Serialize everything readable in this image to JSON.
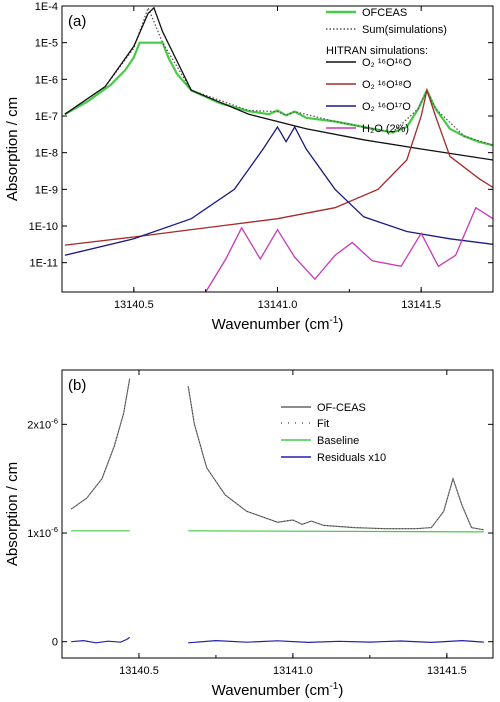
{
  "chart_data": [
    {
      "type": "line",
      "panel_label": "(a)",
      "xlabel": "Wavenumber (cm",
      "xlabel_sup": "-1",
      "xlabel_end": ")",
      "ylabel": "Absorption / cm",
      "y_scale": "log",
      "xlim": [
        13140.25,
        13141.75
      ],
      "ylim_log10": [
        -11.8,
        -4
      ],
      "x_ticks": [
        13140.5,
        13141.0,
        13141.5
      ],
      "x_tick_labels": [
        "13140.5",
        "13141.0",
        "13141.5"
      ],
      "y_ticks_log10": [
        -4,
        -5,
        -6,
        -7,
        -8,
        -9,
        -10,
        -11
      ],
      "y_tick_labels": [
        "1E-4",
        "1E-5",
        "1E-6",
        "1E-7",
        "1E-8",
        "1E-9",
        "1E-10",
        "1E-11"
      ],
      "legend_position": "top-right",
      "legend_header": "HITRAN simulations:",
      "legend": [
        {
          "label": "OFCEAS",
          "color": "#44cc44"
        },
        {
          "label": "Sum(simulations)",
          "color": "#555555",
          "dotted": true
        },
        {
          "label": "O₂ ¹⁶O¹⁶O",
          "color": "#111111"
        },
        {
          "label": "O₂ ¹⁶O¹⁸O",
          "color": "#a52a2a"
        },
        {
          "label": "O₂ ¹⁶O¹⁷O",
          "color": "#1a1a80"
        },
        {
          "label": "H₂O (2%)",
          "color": "#c838b8"
        }
      ],
      "series": [
        {
          "name": "OFCEAS",
          "color": "#44cc44",
          "x": [
            13140.26,
            13140.34,
            13140.42,
            13140.47,
            13140.5,
            13140.52,
            13140.6,
            13140.62,
            13140.65,
            13140.7,
            13140.8,
            13140.9,
            13140.97,
            13141.0,
            13141.03,
            13141.06,
            13141.1,
            13141.2,
            13141.3,
            13141.4,
            13141.45,
            13141.49,
            13141.52,
            13141.55,
            13141.6,
            13141.65,
            13141.7,
            13141.75
          ],
          "y_log10": [
            -6.95,
            -6.6,
            -6.15,
            -5.75,
            -5.4,
            -5.0,
            -5.0,
            -5.4,
            -5.85,
            -6.3,
            -6.65,
            -6.87,
            -6.95,
            -6.85,
            -6.98,
            -6.88,
            -7.05,
            -7.15,
            -7.3,
            -7.45,
            -7.3,
            -6.8,
            -6.3,
            -6.8,
            -7.35,
            -7.55,
            -7.7,
            -7.8
          ]
        },
        {
          "name": "Sum(simulations)",
          "color": "#555555",
          "x": [
            13140.26,
            13140.4,
            13140.5,
            13140.55,
            13140.6,
            13140.7,
            13140.9,
            13141.0,
            13141.03,
            13141.06,
            13141.2,
            13141.4,
            13141.49,
            13141.52,
            13141.55,
            13141.65,
            13141.75
          ],
          "y_log10": [
            -6.95,
            -6.2,
            -5.15,
            -4.05,
            -5.0,
            -6.3,
            -6.85,
            -6.88,
            -6.98,
            -6.88,
            -7.15,
            -7.45,
            -6.8,
            -6.3,
            -6.8,
            -7.55,
            -7.8
          ]
        },
        {
          "name": "O₂ ¹⁶O¹⁶O",
          "color": "#111111",
          "x": [
            13140.26,
            13140.4,
            13140.5,
            13140.55,
            13140.57,
            13140.6,
            13140.7,
            13140.9,
            13141.1,
            13141.3,
            13141.5,
            13141.75
          ],
          "y_log10": [
            -6.95,
            -6.2,
            -5.1,
            -4.2,
            -4.05,
            -4.7,
            -6.3,
            -6.95,
            -7.35,
            -7.65,
            -7.9,
            -8.2
          ]
        },
        {
          "name": "O₂ ¹⁶O¹⁸O",
          "color": "#a52a2a",
          "x": [
            13140.26,
            13140.5,
            13140.8,
            13141.0,
            13141.2,
            13141.35,
            13141.45,
            13141.5,
            13141.52,
            13141.55,
            13141.6,
            13141.7,
            13141.75
          ],
          "y_log10": [
            -10.52,
            -10.3,
            -10.0,
            -9.8,
            -9.5,
            -9.0,
            -8.2,
            -7.0,
            -6.3,
            -7.0,
            -8.1,
            -8.7,
            -8.95
          ]
        },
        {
          "name": "O₂ ¹⁶O¹⁷O",
          "color": "#1a1a80",
          "x": [
            13140.26,
            13140.5,
            13140.7,
            13140.85,
            13140.95,
            13141.0,
            13141.03,
            13141.06,
            13141.1,
            13141.2,
            13141.3,
            13141.45,
            13141.6,
            13141.75
          ],
          "y_log10": [
            -10.8,
            -10.35,
            -9.8,
            -9.0,
            -7.9,
            -7.3,
            -7.7,
            -7.3,
            -7.9,
            -9.0,
            -9.75,
            -10.15,
            -10.35,
            -10.5
          ]
        },
        {
          "name": "H₂O (2%)",
          "color": "#c838b8",
          "x": [
            13140.75,
            13140.82,
            13140.875,
            13140.94,
            13141.0,
            13141.06,
            13141.13,
            13141.2,
            13141.26,
            13141.33,
            13141.43,
            13141.5,
            13141.56,
            13141.62,
            13141.69,
            13141.75
          ],
          "y_log10": [
            -11.8,
            -10.9,
            -10.05,
            -10.9,
            -10.1,
            -10.85,
            -11.45,
            -10.8,
            -10.45,
            -10.95,
            -11.1,
            -10.2,
            -11.1,
            -10.8,
            -9.5,
            -9.8
          ]
        }
      ]
    },
    {
      "type": "line",
      "panel_label": "(b)",
      "xlabel": "Wavenumber (cm",
      "xlabel_sup": "-1",
      "xlabel_end": ")",
      "ylabel": "Absorption / cm",
      "xlim": [
        13140.25,
        13141.65
      ],
      "ylim": [
        -0.15,
        2.5
      ],
      "y_unit_exponent": -6,
      "x_ticks": [
        13140.5,
        13141.0,
        13141.5
      ],
      "x_tick_labels": [
        "13140.5",
        "13141.0",
        "13141.5"
      ],
      "y_ticks": [
        0,
        1,
        2
      ],
      "y_tick_labels": [
        {
          "base": "0",
          "exp": ""
        },
        {
          "base": "1x10",
          "exp": "-6"
        },
        {
          "base": "2x10",
          "exp": "-6"
        }
      ],
      "legend_position": "top-right",
      "legend": [
        {
          "label": "OF-CEAS",
          "color": "#666666"
        },
        {
          "label": "Fit",
          "color": "#666666",
          "dotted": true
        },
        {
          "label": "Baseline",
          "color": "#44cc44"
        },
        {
          "label": "Residuals x10",
          "color": "#2222aa"
        }
      ],
      "series": [
        {
          "name": "OF-CEAS",
          "color": "#777777",
          "segments": [
            {
              "x": [
                13140.28,
                13140.33,
                13140.38,
                13140.42,
                13140.45,
                13140.47
              ],
              "y": [
                1.22,
                1.32,
                1.5,
                1.8,
                2.1,
                2.42
              ]
            },
            {
              "x": [
                13140.66,
                13140.68,
                13140.72,
                13140.78,
                13140.85,
                13140.95,
                13141.0,
                13141.03,
                13141.06,
                13141.1,
                13141.2,
                13141.3,
                13141.4,
                13141.45,
                13141.49,
                13141.52,
                13141.55,
                13141.58,
                13141.62
              ],
              "y": [
                2.35,
                2.0,
                1.6,
                1.35,
                1.2,
                1.1,
                1.12,
                1.08,
                1.11,
                1.07,
                1.05,
                1.04,
                1.04,
                1.05,
                1.2,
                1.5,
                1.25,
                1.05,
                1.03
              ]
            }
          ]
        },
        {
          "name": "Baseline",
          "color": "#44cc44",
          "segments": [
            {
              "x": [
                13140.28,
                13140.47
              ],
              "y": [
                1.02,
                1.02
              ]
            },
            {
              "x": [
                13140.66,
                13141.62
              ],
              "y": [
                1.02,
                1.01
              ]
            }
          ]
        },
        {
          "name": "Residuals x10",
          "color": "#2222aa",
          "segments": [
            {
              "x": [
                13140.28,
                13140.32,
                13140.36,
                13140.4,
                13140.44,
                13140.46,
                13140.47
              ],
              "y": [
                0.0,
                0.01,
                -0.01,
                0.005,
                -0.005,
                0.02,
                0.04
              ]
            },
            {
              "x": [
                13140.66,
                13140.75,
                13140.85,
                13140.95,
                13141.05,
                13141.15,
                13141.25,
                13141.35,
                13141.45,
                13141.55,
                13141.62
              ],
              "y": [
                -0.01,
                0.01,
                -0.005,
                0.008,
                -0.006,
                0.004,
                -0.004,
                0.006,
                -0.006,
                0.01,
                -0.004
              ]
            }
          ]
        }
      ]
    }
  ]
}
